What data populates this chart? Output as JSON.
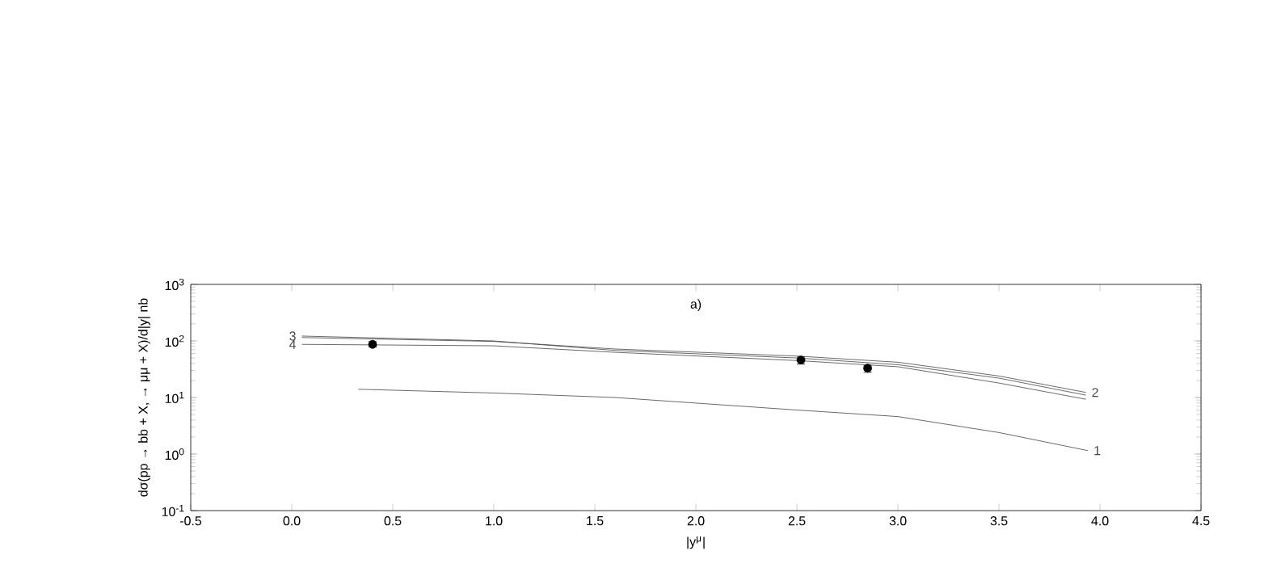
{
  "chart_data": {
    "type": "line",
    "xlabel": "|y$^{μ}$|",
    "ylabel": "dσ(pp → bb + X, → μμ + X)/d|y| nb",
    "log": "y",
    "xlim": [
      -0.5,
      4.5
    ],
    "ylim": [
      0.1,
      1000
    ],
    "xticks": [
      -0.5,
      {
        "value": 0,
        "label": "0.0"
      },
      0.5,
      {
        "value": 1,
        "label": "1.0"
      },
      1.5,
      {
        "value": 2,
        "label": "2.0"
      },
      2.5,
      {
        "value": 3,
        "label": "3.0"
      },
      3.5,
      {
        "value": 4,
        "label": "4.0"
      },
      4.5
    ],
    "yticks": [
      {
        "value": 0.1,
        "label": "10$^{-1}$"
      },
      {
        "value": 1,
        "label": "10$^{0}$"
      },
      {
        "value": 10,
        "label": "10$^{1}$"
      },
      {
        "value": 100,
        "label": "10$^{2}$"
      },
      {
        "value": 1000,
        "label": "10$^{3}$"
      }
    ],
    "grid": false,
    "line_style": "solid",
    "series": [
      {
        "name": "3",
        "marker": "none",
        "color": "#444444",
        "x": [
          0.05,
          1.0,
          1.6,
          2.5,
          3.0,
          3.5,
          3.93
        ],
        "values": [
          122,
          100,
          68,
          50,
          38,
          22,
          11
        ]
      },
      {
        "name": "2",
        "marker": "none",
        "color": "#444444",
        "x": [
          0.05,
          1.0,
          1.6,
          2.5,
          3.0,
          3.5,
          3.93
        ],
        "values": [
          115,
          98,
          72,
          54,
          42,
          24,
          12.3
        ]
      },
      {
        "name": "4",
        "marker": "none",
        "color": "#444444",
        "x": [
          0.05,
          1.0,
          1.6,
          2.5,
          3.0,
          3.5,
          3.93
        ],
        "values": [
          87,
          82,
          63,
          45,
          35,
          18,
          9.3
        ]
      },
      {
        "name": "1",
        "marker": "none",
        "color": "#444444",
        "x": [
          0.33,
          1.0,
          1.6,
          2.5,
          3.0,
          3.5,
          3.94
        ],
        "values": [
          14,
          12,
          10,
          6,
          4.6,
          2.4,
          1.15
        ]
      },
      {
        "type": "scatter",
        "marker": "circle",
        "color": "#000000",
        "x": [
          0.4,
          2.52,
          2.85
        ],
        "values": [
          87,
          46,
          33
        ],
        "errors": [
          [
            78,
            97
          ],
          [
            39,
            52
          ],
          [
            28,
            37
          ]
        ]
      }
    ],
    "annotations": [
      "a)"
    ]
  }
}
